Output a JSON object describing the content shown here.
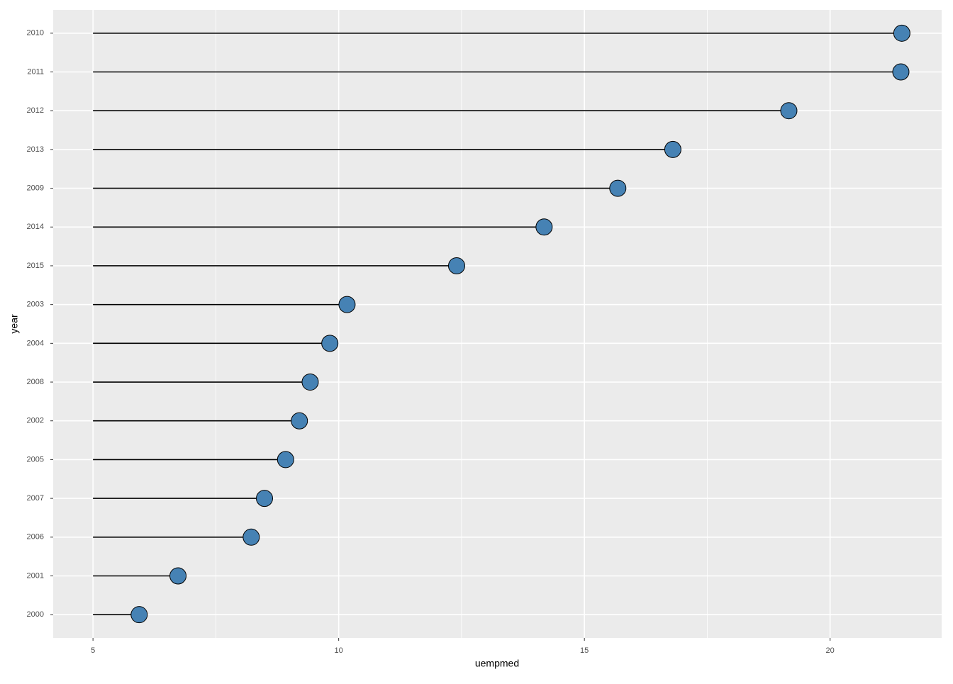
{
  "chart_data": {
    "type": "lollipop",
    "x_label": "uempmed",
    "y_label": "year",
    "categories": [
      "2010",
      "2011",
      "2012",
      "2013",
      "2009",
      "2014",
      "2015",
      "2003",
      "2004",
      "2008",
      "2002",
      "2005",
      "2007",
      "2006",
      "2001",
      "2000"
    ],
    "values": [
      21.46,
      21.44,
      19.16,
      16.8,
      15.68,
      14.18,
      12.4,
      10.17,
      9.82,
      9.42,
      9.2,
      8.92,
      8.49,
      8.22,
      6.73,
      5.94
    ],
    "baseline": 5,
    "color": "#4682b4",
    "xlim": [
      4.19,
      22.27
    ],
    "xticks": [
      5,
      10,
      15,
      20
    ],
    "x_minor_grid": [
      7.5,
      12.5,
      17.5
    ],
    "grid": true
  }
}
